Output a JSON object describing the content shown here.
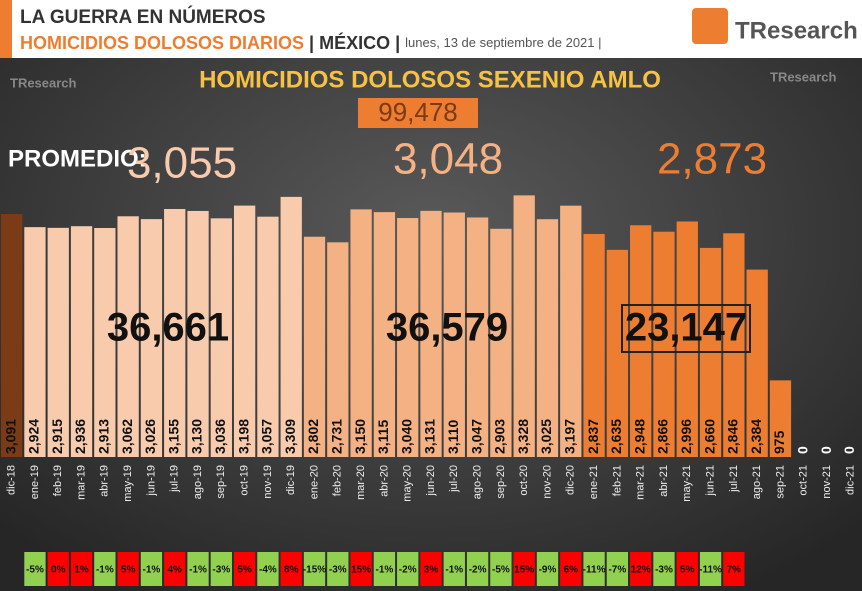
{
  "header": {
    "title": "LA GUERRA EN NÚMEROS",
    "subtitle": "HOMICIDIOS DOLOSOS DIARIOS",
    "place": "| MÉXICO |",
    "date": "lunes, 13 de septiembre de 2021 |",
    "logo": "TResearch"
  },
  "chart_data": {
    "type": "bar",
    "title": "HOMICIDIOS DOLOSOS SEXENIO AMLO",
    "categories": [
      "dic-18",
      "ene-19",
      "feb-19",
      "mar-19",
      "abr-19",
      "may-19",
      "jun-19",
      "jul-19",
      "ago-19",
      "sep-19",
      "oct-19",
      "nov-19",
      "dic-19",
      "ene-20",
      "feb-20",
      "mar-20",
      "abr-20",
      "may-20",
      "jun-20",
      "jul-20",
      "ago-20",
      "sep-20",
      "oct-20",
      "nov-20",
      "dic-20",
      "ene-21",
      "feb-21",
      "mar-21",
      "abr-21",
      "may-21",
      "jun-21",
      "jul-21",
      "ago-21",
      "sep-21",
      "oct-21",
      "nov-21",
      "dic-21"
    ],
    "values": [
      3091,
      2924,
      2915,
      2936,
      2913,
      3062,
      3026,
      3155,
      3130,
      3036,
      3198,
      3057,
      3309,
      2802,
      2731,
      3150,
      3115,
      3040,
      3131,
      3110,
      3047,
      2903,
      3328,
      3025,
      3197,
      2837,
      2635,
      2948,
      2866,
      2996,
      2660,
      2846,
      2384,
      975,
      0,
      0,
      0
    ],
    "value_labels": [
      "3,091",
      "2,924",
      "2,915",
      "2,936",
      "2,913",
      "3,062",
      "3,026",
      "3,155",
      "3,130",
      "3,036",
      "3,198",
      "3,057",
      "3,309",
      "2,802",
      "2,731",
      "3,150",
      "3,115",
      "3,040",
      "3,131",
      "3,110",
      "3,047",
      "2,903",
      "3,328",
      "3,025",
      "3,197",
      "2,837",
      "2,635",
      "2,948",
      "2,866",
      "2,996",
      "2,660",
      "2,846",
      "2,384",
      "975",
      "0",
      "0",
      "0"
    ],
    "colors": [
      "#7b3b16",
      "#f8cbad",
      "#f8cbad",
      "#f8cbad",
      "#f8cbad",
      "#f8cbad",
      "#f8cbad",
      "#f8cbad",
      "#f8cbad",
      "#f8cbad",
      "#f8cbad",
      "#f8cbad",
      "#f8cbad",
      "#f4b183",
      "#f4b183",
      "#f4b183",
      "#f4b183",
      "#f4b183",
      "#f4b183",
      "#f4b183",
      "#f4b183",
      "#f4b183",
      "#f4b183",
      "#f4b183",
      "#f4b183",
      "#ed7d31",
      "#ed7d31",
      "#ed7d31",
      "#ed7d31",
      "#ed7d31",
      "#ed7d31",
      "#ed7d31",
      "#ed7d31",
      "#ed7d31",
      "#ed7d31",
      "#ed7d31",
      "#ed7d31"
    ],
    "ylim": [
      0,
      3600
    ],
    "changes": {
      "values": [
        -5,
        0,
        1,
        -1,
        5,
        -1,
        4,
        -1,
        -3,
        5,
        -4,
        8,
        -15,
        -3,
        15,
        -1,
        -2,
        3,
        -1,
        -2,
        -5,
        15,
        -9,
        6,
        -11,
        -7,
        12,
        -3,
        5,
        -11,
        7
      ],
      "value_labels": [
        "-5%",
        "0%",
        "1%",
        "-1%",
        "5%",
        "-1%",
        "4%",
        "-1%",
        "-3%",
        "5%",
        "-4%",
        "8%",
        "-15%",
        "-3%",
        "15%",
        "-1%",
        "-2%",
        "3%",
        "-1%",
        "-2%",
        "-5%",
        "15%",
        "-9%",
        "6%",
        "-11%",
        "-7%",
        "12%",
        "-3%",
        "5%",
        "-11%",
        "7%"
      ],
      "negative_color": "#92d050",
      "positive_color": "#ff0000"
    },
    "annotations": {
      "total": "99,478",
      "average_label": "PROMEDIO:",
      "averages": [
        "3,055",
        "3,048",
        "2,873"
      ],
      "year_totals": [
        "36,661",
        "36,579",
        "23,147"
      ]
    }
  }
}
